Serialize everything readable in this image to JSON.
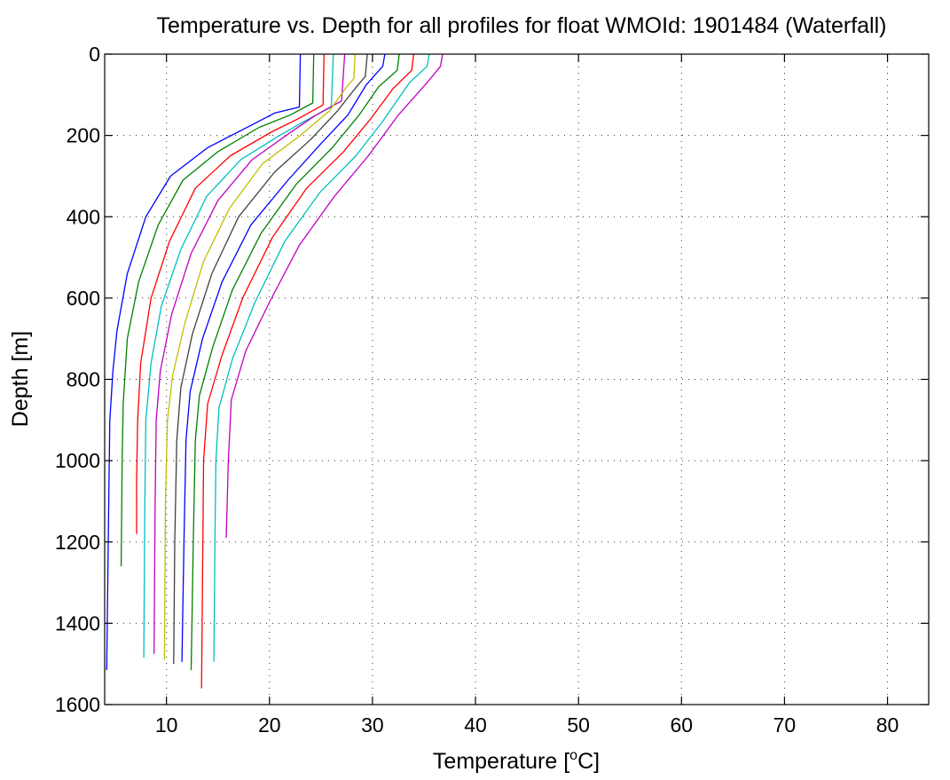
{
  "chart_data": {
    "type": "line",
    "title": "Temperature vs. Depth for all profiles for float WMOId: 1901484 (Waterfall)",
    "xlabel_prefix": "Temperature [",
    "xlabel_sup": "o",
    "xlabel_suffix": "C]",
    "ylabel": "Depth [m]",
    "xlim": [
      4,
      84
    ],
    "ylim": [
      0,
      1600
    ],
    "y_reversed": true,
    "grid": true,
    "x_ticks": [
      10,
      20,
      30,
      40,
      50,
      60,
      70,
      80
    ],
    "y_ticks": [
      0,
      200,
      400,
      600,
      800,
      1000,
      1200,
      1400,
      1600
    ],
    "series": [
      {
        "color": "#0000ff",
        "points": [
          [
            23.0,
            0
          ],
          [
            22.9,
            130
          ],
          [
            20.5,
            145
          ],
          [
            18.6,
            170
          ],
          [
            14.0,
            230
          ],
          [
            10.4,
            300
          ],
          [
            8.0,
            400
          ],
          [
            6.2,
            540
          ],
          [
            5.2,
            680
          ],
          [
            4.8,
            780
          ],
          [
            4.5,
            900
          ],
          [
            4.4,
            1100
          ],
          [
            4.3,
            1300
          ],
          [
            4.2,
            1515
          ]
        ]
      },
      {
        "color": "#008000",
        "points": [
          [
            24.3,
            0
          ],
          [
            24.2,
            120
          ],
          [
            22.0,
            150
          ],
          [
            19.0,
            180
          ],
          [
            15.0,
            240
          ],
          [
            11.6,
            310
          ],
          [
            9.2,
            420
          ],
          [
            7.3,
            560
          ],
          [
            6.2,
            700
          ],
          [
            5.8,
            860
          ],
          [
            5.7,
            1000
          ],
          [
            5.6,
            1260
          ]
        ]
      },
      {
        "color": "#ff0000",
        "points": [
          [
            25.3,
            0
          ],
          [
            25.2,
            125
          ],
          [
            22.7,
            160
          ],
          [
            20.3,
            190
          ],
          [
            16.2,
            250
          ],
          [
            12.8,
            330
          ],
          [
            10.3,
            460
          ],
          [
            8.5,
            600
          ],
          [
            7.5,
            760
          ],
          [
            7.2,
            900
          ],
          [
            7.1,
            1050
          ],
          [
            7.1,
            1180
          ]
        ]
      },
      {
        "color": "#00bfbf",
        "points": [
          [
            26.2,
            0
          ],
          [
            26.0,
            130
          ],
          [
            23.4,
            165
          ],
          [
            21.0,
            200
          ],
          [
            17.2,
            260
          ],
          [
            13.9,
            350
          ],
          [
            11.4,
            480
          ],
          [
            9.5,
            620
          ],
          [
            8.5,
            760
          ],
          [
            8.0,
            900
          ],
          [
            7.9,
            1100
          ],
          [
            7.8,
            1485
          ]
        ]
      },
      {
        "color": "#bf00bf",
        "points": [
          [
            27.3,
            0
          ],
          [
            27.0,
            115
          ],
          [
            24.5,
            150
          ],
          [
            21.9,
            195
          ],
          [
            18.3,
            260
          ],
          [
            15.0,
            360
          ],
          [
            12.4,
            490
          ],
          [
            10.5,
            640
          ],
          [
            9.4,
            780
          ],
          [
            9.0,
            900
          ],
          [
            8.9,
            1100
          ],
          [
            8.8,
            1475
          ]
        ]
      },
      {
        "color": "#bfbf00",
        "points": [
          [
            28.3,
            0
          ],
          [
            28.2,
            60
          ],
          [
            27.5,
            80
          ],
          [
            25.8,
            140
          ],
          [
            23.0,
            200
          ],
          [
            19.3,
            270
          ],
          [
            16.1,
            380
          ],
          [
            13.6,
            510
          ],
          [
            11.8,
            660
          ],
          [
            10.6,
            790
          ],
          [
            10.1,
            900
          ],
          [
            9.9,
            1100
          ],
          [
            9.8,
            1490
          ]
        ]
      },
      {
        "color": "#404040",
        "points": [
          [
            29.5,
            0
          ],
          [
            29.3,
            55
          ],
          [
            28.3,
            85
          ],
          [
            26.6,
            140
          ],
          [
            24.0,
            210
          ],
          [
            20.5,
            290
          ],
          [
            17.0,
            400
          ],
          [
            14.4,
            540
          ],
          [
            12.5,
            690
          ],
          [
            11.4,
            820
          ],
          [
            11.0,
            950
          ],
          [
            10.8,
            1200
          ],
          [
            10.7,
            1500
          ]
        ]
      },
      {
        "color": "#0000ff",
        "points": [
          [
            31.2,
            0
          ],
          [
            31.0,
            30
          ],
          [
            29.4,
            75
          ],
          [
            27.6,
            150
          ],
          [
            25.0,
            220
          ],
          [
            21.8,
            310
          ],
          [
            18.2,
            420
          ],
          [
            15.4,
            560
          ],
          [
            13.5,
            700
          ],
          [
            12.3,
            830
          ],
          [
            11.9,
            950
          ],
          [
            11.7,
            1200
          ],
          [
            11.5,
            1495
          ]
        ]
      },
      {
        "color": "#008000",
        "points": [
          [
            32.6,
            0
          ],
          [
            32.4,
            40
          ],
          [
            30.6,
            80
          ],
          [
            28.7,
            150
          ],
          [
            26.1,
            230
          ],
          [
            22.6,
            320
          ],
          [
            19.2,
            440
          ],
          [
            16.4,
            580
          ],
          [
            14.5,
            720
          ],
          [
            13.2,
            840
          ],
          [
            12.8,
            950
          ],
          [
            12.6,
            1200
          ],
          [
            12.4,
            1515
          ]
        ]
      },
      {
        "color": "#ff0000",
        "points": [
          [
            34.0,
            0
          ],
          [
            33.8,
            40
          ],
          [
            32.0,
            85
          ],
          [
            29.8,
            160
          ],
          [
            27.2,
            240
          ],
          [
            23.6,
            330
          ],
          [
            20.3,
            450
          ],
          [
            17.4,
            600
          ],
          [
            15.4,
            740
          ],
          [
            14.0,
            860
          ],
          [
            13.6,
            1000
          ],
          [
            13.5,
            1300
          ],
          [
            13.4,
            1560
          ]
        ]
      },
      {
        "color": "#00bfbf",
        "points": [
          [
            35.5,
            0
          ],
          [
            35.3,
            30
          ],
          [
            33.6,
            70
          ],
          [
            31.0,
            165
          ],
          [
            28.4,
            250
          ],
          [
            24.9,
            340
          ],
          [
            21.5,
            460
          ],
          [
            18.6,
            610
          ],
          [
            16.4,
            750
          ],
          [
            15.1,
            870
          ],
          [
            14.8,
            1000
          ],
          [
            14.7,
            1200
          ],
          [
            14.6,
            1495
          ]
        ]
      },
      {
        "color": "#bf00bf",
        "points": [
          [
            36.8,
            0
          ],
          [
            36.6,
            30
          ],
          [
            35.3,
            70
          ],
          [
            32.5,
            150
          ],
          [
            29.6,
            250
          ],
          [
            26.3,
            350
          ],
          [
            22.9,
            470
          ],
          [
            20.0,
            610
          ],
          [
            17.7,
            730
          ],
          [
            16.3,
            850
          ],
          [
            16.0,
            1000
          ],
          [
            15.9,
            1100
          ],
          [
            15.8,
            1190
          ]
        ]
      }
    ]
  }
}
